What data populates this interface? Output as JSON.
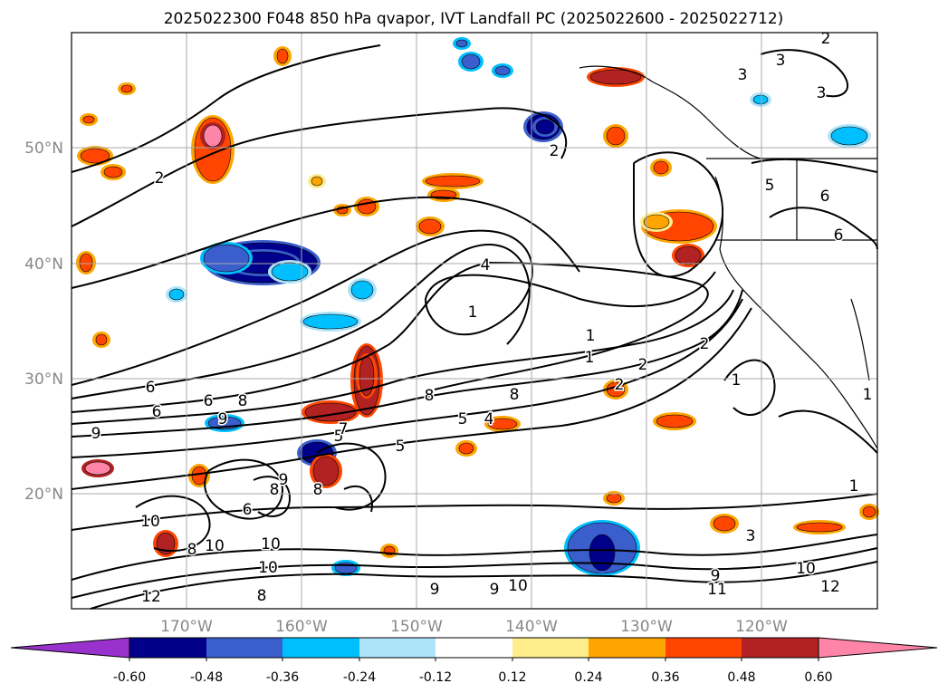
{
  "title": "2025022300 F048 850 hPa qvapor, IVT Landfall PC (2025022600 - 2025022712)",
  "map": {
    "lat_labels": [
      "50°N",
      "40°N",
      "30°N",
      "20°N"
    ],
    "lon_labels": [
      "170°W",
      "160°W",
      "150°W",
      "140°W",
      "130°W",
      "120°W"
    ],
    "contour_labels": [
      "2",
      "3",
      "3",
      "3",
      "2",
      "5",
      "6",
      "6",
      "2",
      "1",
      "4",
      "1",
      "1",
      "2",
      "2",
      "2",
      "8",
      "8",
      "6",
      "6",
      "6",
      "8",
      "9",
      "5",
      "4",
      "9",
      "9",
      "8",
      "10",
      "6",
      "10",
      "8",
      "10",
      "12",
      "10",
      "8",
      "9",
      "9",
      "10",
      "1",
      "3",
      "10",
      "11",
      "12",
      "9",
      "1",
      "1",
      "8",
      "7",
      "5",
      "5"
    ]
  },
  "colorbar": {
    "tick_labels": [
      "-0.60",
      "-0.48",
      "-0.36",
      "-0.24",
      "-0.12",
      "0.12",
      "0.24",
      "0.36",
      "0.48",
      "0.60"
    ],
    "colors": {
      "under": "#9932CC",
      "bins": [
        "#9932CC",
        "#00008B",
        "#3A5FCD",
        "#00BFFF",
        "#ADE4FA",
        "#FFFFFF",
        "#FFEC8B",
        "#FFA500",
        "#FF4500",
        "#B22222",
        "#FF85A8"
      ],
      "over": "#FF85A8"
    }
  },
  "colors": {
    "grid": "#aaaaaa",
    "label_gray": "#888888",
    "contour": "#000000"
  }
}
